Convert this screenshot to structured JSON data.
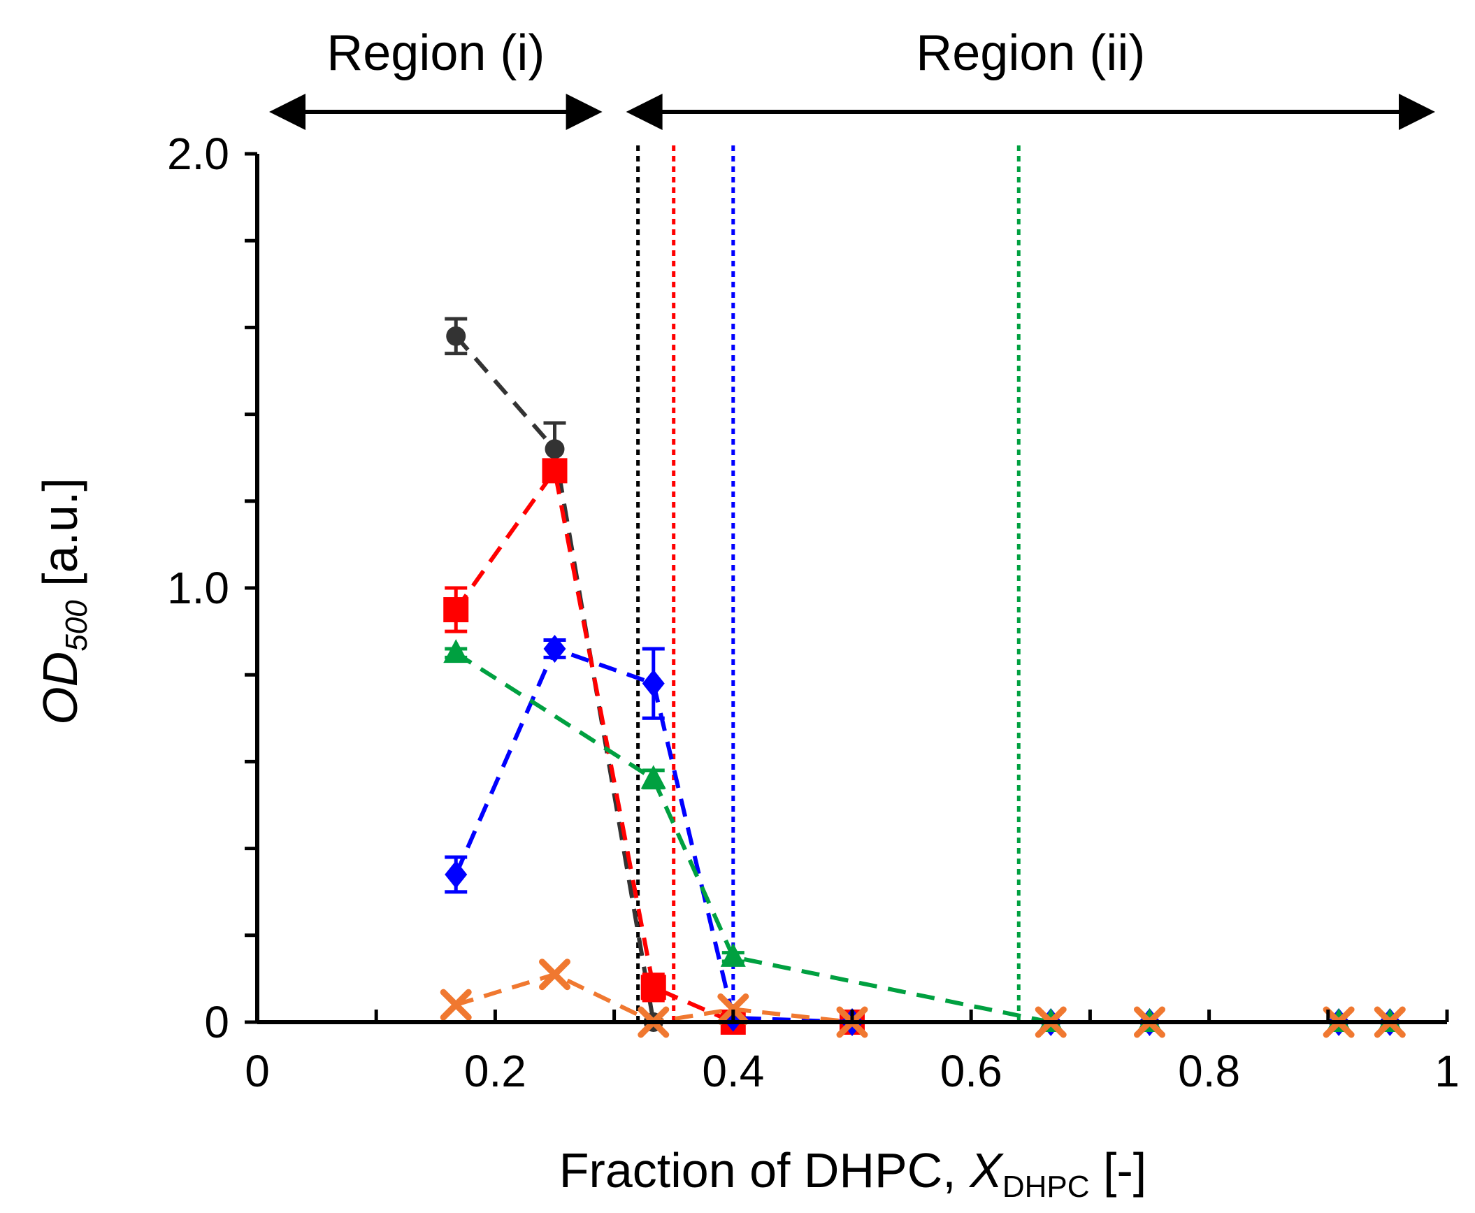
{
  "chart_data": {
    "type": "line",
    "xlabel": {
      "prefix": "Fraction of DHPC, ",
      "var": "X",
      "sub": "DHPC",
      "suffix": " [-]"
    },
    "ylabel": {
      "var": "OD",
      "sub": "500",
      "suffix": " [a.u.]"
    },
    "xlim": [
      0,
      1
    ],
    "ylim": [
      0,
      2.0
    ],
    "x_ticks": [
      {
        "v": 0,
        "label": "0"
      },
      {
        "v": 0.2,
        "label": "0.2"
      },
      {
        "v": 0.4,
        "label": "0.4"
      },
      {
        "v": 0.6,
        "label": "0.6"
      },
      {
        "v": 0.8,
        "label": "0.8"
      },
      {
        "v": 1,
        "label": "1"
      }
    ],
    "x_minor_ticks": [
      0.1,
      0.3,
      0.5,
      0.7,
      0.9
    ],
    "y_ticks": [
      {
        "v": 0,
        "label": "0"
      },
      {
        "v": 1.0,
        "label": "1.0"
      },
      {
        "v": 2.0,
        "label": "2.0"
      }
    ],
    "y_minor_ticks": [
      0.2,
      0.4,
      0.6,
      0.8,
      1.2,
      1.4,
      1.6,
      1.8
    ],
    "regions": [
      {
        "label": "Region (i)",
        "x_start": 0.01,
        "x_end": 0.29
      },
      {
        "label": "Region (ii)",
        "x_start": 0.31,
        "x_end": 0.99
      }
    ],
    "thresholds": [
      {
        "name": "black",
        "x": 0.32,
        "color": "#000000"
      },
      {
        "name": "red",
        "x": 0.35,
        "color": "#ff0000"
      },
      {
        "name": "blue",
        "x": 0.4,
        "color": "#0000ff"
      },
      {
        "name": "green",
        "x": 0.64,
        "color": "#00a040"
      }
    ],
    "series": [
      {
        "name": "black",
        "color": "#333333",
        "marker": "circle",
        "x": [
          0.167,
          0.25,
          0.333,
          0.4,
          0.5
        ],
        "y": [
          1.58,
          1.32,
          0.0,
          0.0,
          0.0
        ],
        "err": [
          0.04,
          0.06,
          0,
          0,
          0
        ]
      },
      {
        "name": "red",
        "color": "#ff0000",
        "marker": "square",
        "x": [
          0.167,
          0.25,
          0.333,
          0.4,
          0.5
        ],
        "y": [
          0.95,
          1.27,
          0.08,
          0.0,
          0.0
        ],
        "err": [
          0.05,
          0.02,
          0.03,
          0,
          0
        ]
      },
      {
        "name": "blue",
        "color": "#0000ff",
        "marker": "diamond",
        "x": [
          0.167,
          0.25,
          0.333,
          0.4,
          0.5,
          0.667,
          0.75,
          0.909,
          0.952
        ],
        "y": [
          0.34,
          0.86,
          0.78,
          0.01,
          0.0,
          0.0,
          0.0,
          0.0,
          0.0
        ],
        "err": [
          0.04,
          0.02,
          0.08,
          0,
          0,
          0,
          0,
          0,
          0
        ]
      },
      {
        "name": "green",
        "color": "#00a040",
        "marker": "triangle",
        "x": [
          0.167,
          0.333,
          0.4,
          0.667,
          0.75,
          0.909,
          0.952
        ],
        "y": [
          0.85,
          0.56,
          0.15,
          0.0,
          0.0,
          0.0,
          0.0
        ],
        "err": [
          0.01,
          0.02,
          0.01,
          0,
          0,
          0,
          0
        ]
      },
      {
        "name": "orange",
        "color": "#f07830",
        "marker": "cross",
        "x": [
          0.167,
          0.25,
          0.333,
          0.4,
          0.5,
          0.667,
          0.75,
          0.909,
          0.952
        ],
        "y": [
          0.04,
          0.11,
          0.0,
          0.03,
          0.0,
          0.0,
          0.0,
          0.0,
          0.0
        ],
        "err": [
          0,
          0,
          0,
          0,
          0,
          0,
          0,
          0,
          0
        ]
      }
    ]
  }
}
